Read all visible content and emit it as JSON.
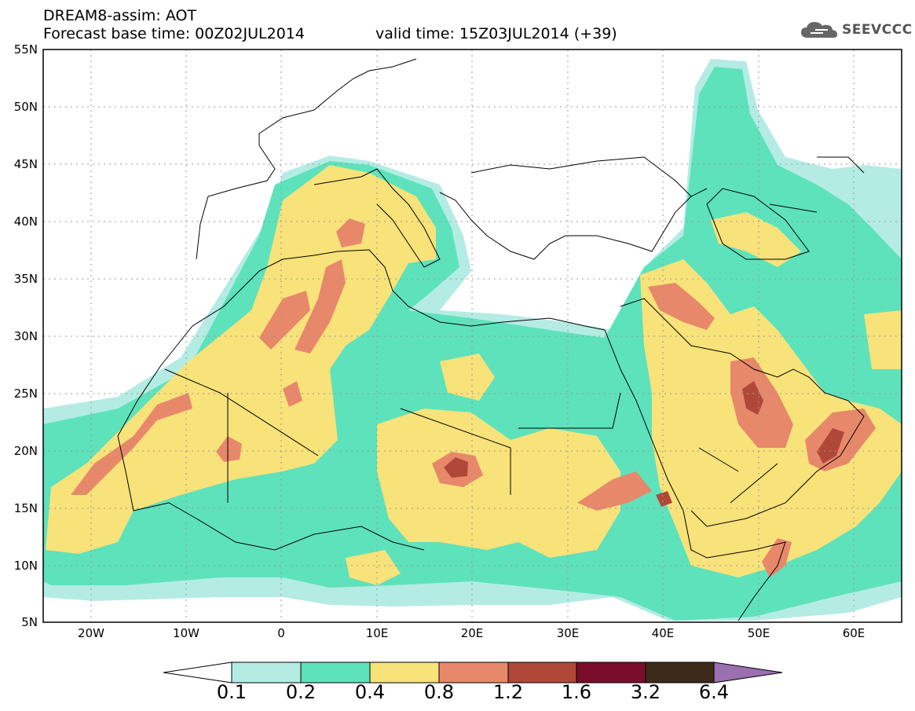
{
  "header": {
    "title_line1": "DREAM8-assim: AOT",
    "title_line2": "Forecast base time: 00Z02JUL2014",
    "valid_time": "valid time: 15Z03JUL2014 (+39)",
    "logo_text": "SEEVCCC"
  },
  "map": {
    "variable": "AOT",
    "lat_range": [
      5,
      55
    ],
    "lon_range": [
      -25,
      65
    ],
    "lat_ticks": [
      "55N",
      "50N",
      "45N",
      "40N",
      "35N",
      "30N",
      "25N",
      "20N",
      "15N",
      "10N",
      "5N"
    ],
    "lon_ticks": [
      "20W",
      "10W",
      "0",
      "10E",
      "20E",
      "30E",
      "40E",
      "50E",
      "60E"
    ],
    "grid": true
  },
  "legend": {
    "labels": [
      "0.1",
      "0.2",
      "0.4",
      "0.8",
      "1.2",
      "1.6",
      "3.2",
      "6.4"
    ],
    "colors": [
      "#ffffff",
      "#b4ece4",
      "#5ee2bc",
      "#f8e27a",
      "#e8886a",
      "#b0483a",
      "#7a0e2a",
      "#3e2a1a",
      "#9a70b0"
    ]
  }
}
